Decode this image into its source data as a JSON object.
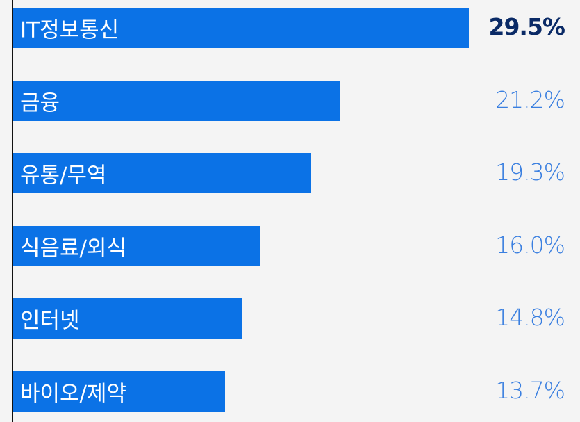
{
  "chart_data": {
    "type": "bar",
    "orientation": "horizontal",
    "categories": [
      "IT정보통신",
      "금융",
      "유통/무역",
      "식음료/외식",
      "인터넷",
      "바이오/제약"
    ],
    "values": [
      29.5,
      21.2,
      19.3,
      16.0,
      14.8,
      13.7
    ],
    "value_labels": [
      "29.5%",
      "21.2%",
      "19.3%",
      "16.0%",
      "14.8%",
      "13.7%"
    ],
    "unit": "%",
    "xlim": [
      0,
      30
    ],
    "grid": false,
    "legend": "none",
    "colors": {
      "bar": "#0b72e6",
      "bar_text": "#ffffff",
      "value_text": "#3a7fe0",
      "top_value_text": "#0a2a66",
      "background": "#f4f4f4",
      "axis": "#111111"
    }
  }
}
